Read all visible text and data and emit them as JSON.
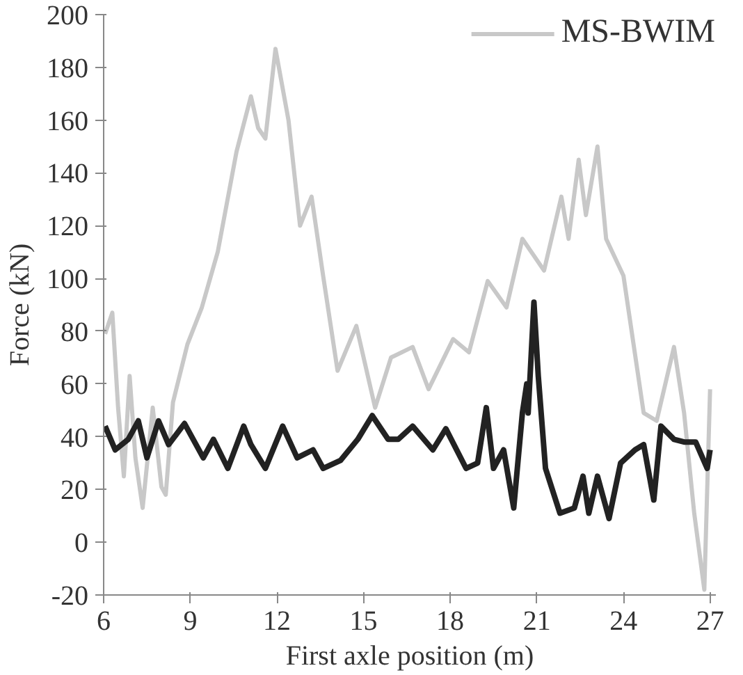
{
  "chart_data": {
    "type": "line",
    "xlabel": "First axle position (m)",
    "ylabel": "Force (kN)",
    "xlim": [
      6,
      27.2
    ],
    "ylim": [
      -20,
      200
    ],
    "xticks": [
      6,
      9,
      12,
      15,
      18,
      21,
      24,
      27
    ],
    "yticks": [
      -20,
      0,
      20,
      40,
      60,
      80,
      100,
      120,
      140,
      160,
      180,
      200
    ],
    "grid": false,
    "legend": "top",
    "marker": "none",
    "line_style": "solid",
    "series": [
      {
        "name": "MS-BWIM",
        "color": "#c8c8c8",
        "x": [
          6.05,
          6.3,
          6.5,
          6.7,
          6.9,
          7.1,
          7.35,
          7.7,
          8.0,
          8.15,
          8.4,
          8.9,
          9.4,
          9.95,
          10.6,
          11.1,
          11.35,
          11.6,
          11.95,
          12.4,
          12.8,
          13.2,
          13.6,
          14.1,
          14.75,
          15.4,
          15.95,
          16.7,
          17.25,
          18.1,
          18.65,
          19.3,
          19.95,
          20.5,
          21.25,
          21.85,
          22.1,
          22.45,
          22.7,
          23.1,
          23.4,
          24.0,
          24.7,
          25.15,
          25.75,
          26.1,
          26.45,
          26.8,
          27.0
        ],
        "values": [
          79,
          87,
          51,
          25,
          63,
          32,
          13,
          51,
          21,
          18,
          53,
          75,
          89,
          110,
          148,
          169,
          157,
          153,
          187,
          160,
          120,
          131,
          101,
          65,
          82,
          51,
          70,
          74,
          58,
          77,
          72,
          99,
          89,
          115,
          103,
          131,
          115,
          145,
          124,
          150,
          115,
          101,
          49,
          46,
          74,
          49,
          11,
          -18,
          58
        ]
      },
      {
        "color": "#222222",
        "x": [
          6.05,
          6.4,
          6.85,
          7.2,
          7.5,
          7.9,
          8.25,
          8.8,
          9.45,
          9.8,
          10.3,
          10.85,
          11.1,
          11.6,
          12.2,
          12.7,
          13.25,
          13.6,
          14.2,
          14.8,
          15.3,
          15.85,
          16.2,
          16.7,
          17.4,
          17.85,
          18.55,
          18.95,
          19.25,
          19.5,
          19.85,
          20.2,
          20.5,
          20.65,
          20.7,
          20.9,
          21.05,
          21.3,
          21.8,
          22.3,
          22.6,
          22.8,
          23.1,
          23.5,
          23.9,
          24.4,
          24.7,
          25.05,
          25.3,
          25.75,
          26.1,
          26.5,
          26.9,
          27.0
        ],
        "values": [
          44,
          35,
          39,
          46,
          32,
          46,
          37,
          45,
          32,
          39,
          28,
          44,
          37,
          28,
          44,
          32,
          35,
          28,
          31,
          39,
          48,
          39,
          39,
          44,
          35,
          43,
          28,
          30,
          51,
          28,
          35,
          13,
          49,
          60,
          49,
          91,
          63,
          28,
          11,
          13,
          25,
          11,
          25,
          9,
          30,
          35,
          37,
          16,
          44,
          39,
          38,
          38,
          28,
          35
        ]
      }
    ]
  }
}
